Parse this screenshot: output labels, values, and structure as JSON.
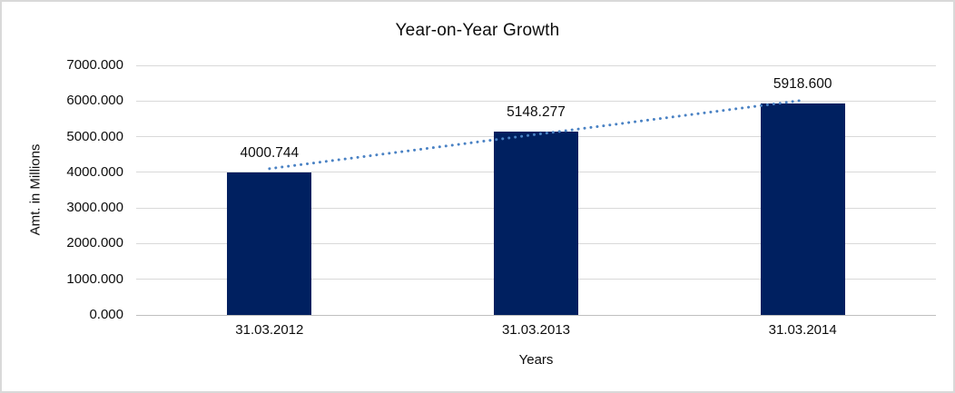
{
  "frame": {
    "background_color": "#ffffff",
    "border_color": "#d9d9d9"
  },
  "chart_data": {
    "type": "bar",
    "title": "Year-on-Year Growth",
    "xlabel": "Years",
    "ylabel": "Amt. in Millions",
    "categories": [
      "31.03.2012",
      "31.03.2013",
      "31.03.2014"
    ],
    "values": [
      4000.744,
      5148.277,
      5918.6
    ],
    "data_labels": [
      "4000.744",
      "5148.277",
      "5918.600"
    ],
    "ylim": [
      0,
      7000
    ],
    "ytick_step": 1000,
    "ytick_labels": [
      "0.000",
      "1000.000",
      "2000.000",
      "3000.000",
      "4000.000",
      "5000.000",
      "6000.000",
      "7000.000"
    ],
    "grid": true,
    "legend": "none",
    "bar_color": "#002060",
    "gridline_color": "#d9d9d9",
    "axis_line_color": "#bfbfbf",
    "text_color": "#0d0d0d",
    "trendline": {
      "kind": "linear",
      "line_style": "dotted",
      "color": "#4a82c4"
    }
  }
}
